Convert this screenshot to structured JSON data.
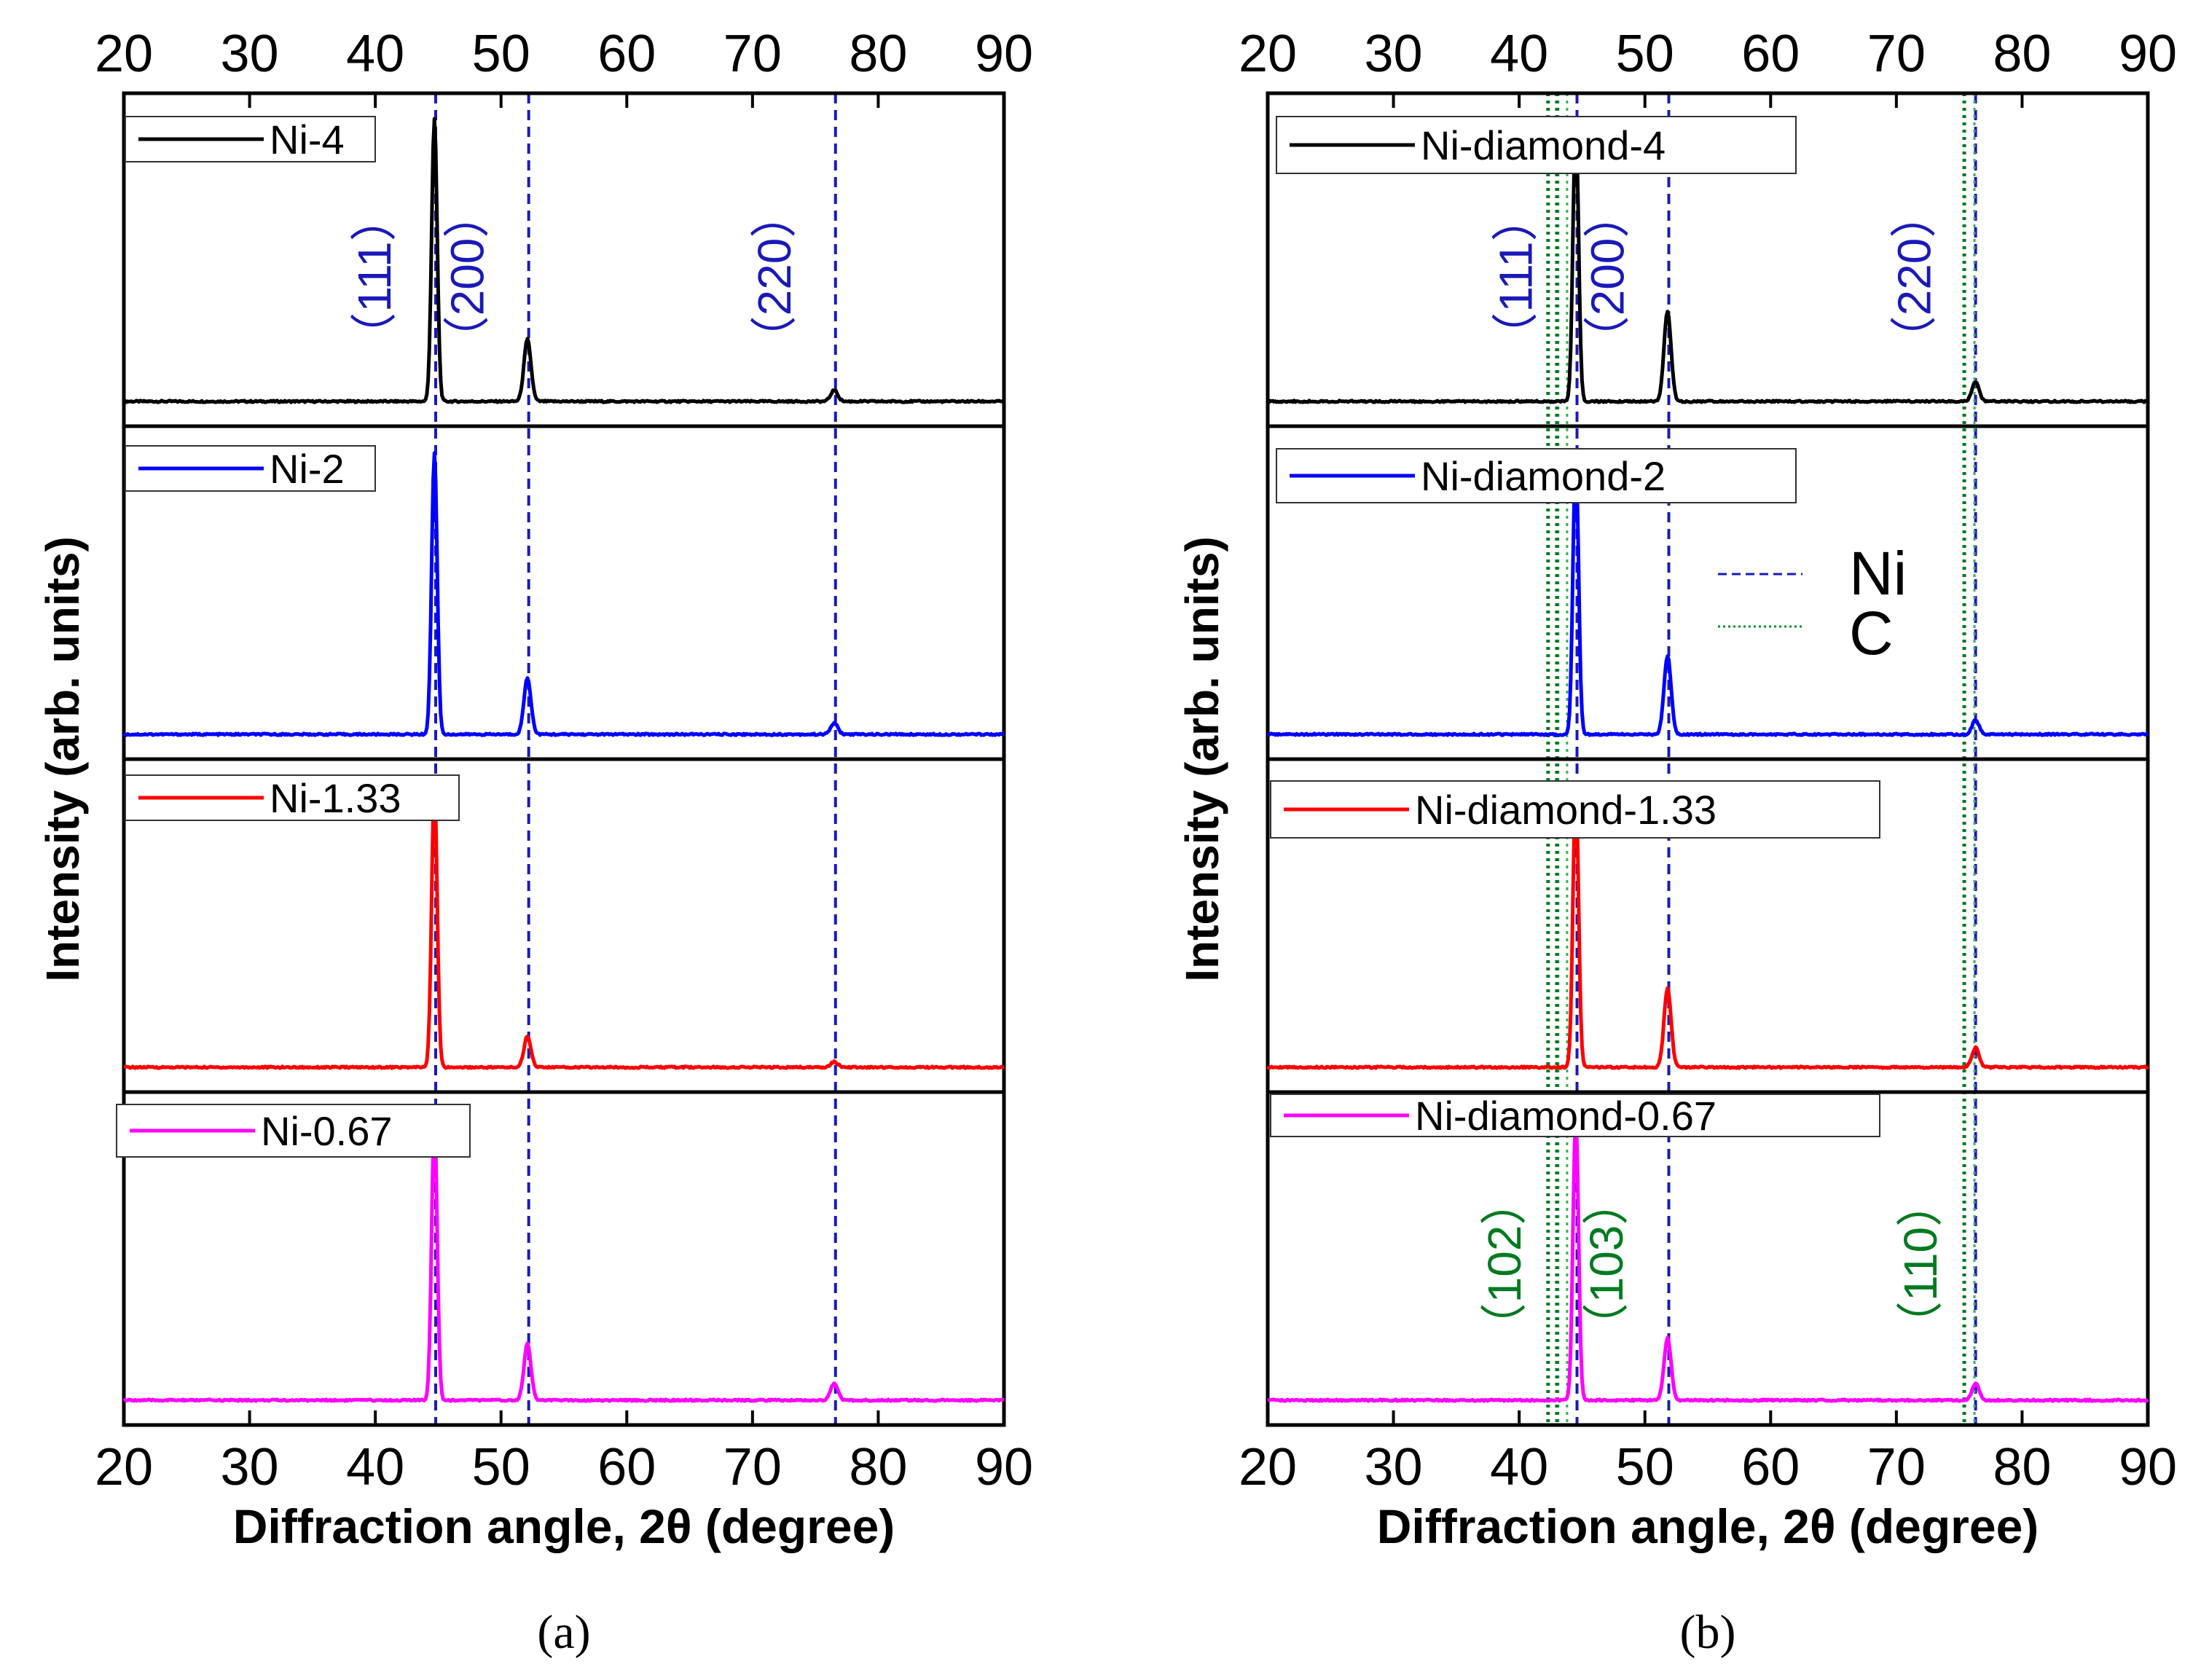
{
  "chart_data": [
    {
      "id": "a",
      "type": "line",
      "caption": "(a)",
      "xlabel": "Diffraction angle, 2θ (degree)",
      "ylabel": "Intensity (arb. units)",
      "xlim": [
        20,
        90
      ],
      "xticks": [
        "20",
        "30",
        "40",
        "50",
        "60",
        "70",
        "80",
        "90"
      ],
      "reference_lines": [
        {
          "phase": "Ni",
          "x": 44.8,
          "label": "（111）",
          "color": "#1a1ab8"
        },
        {
          "phase": "Ni",
          "x": 52.2,
          "label": "（200）",
          "color": "#1a1ab8"
        },
        {
          "phase": "Ni",
          "x": 76.6,
          "label": "（220）",
          "color": "#1a1ab8"
        }
      ],
      "series": [
        {
          "name": "Ni-4",
          "color": "#000000",
          "peaks": [
            {
              "x": 44.7,
              "height": 1.0
            },
            {
              "x": 52.1,
              "height": 0.22
            },
            {
              "x": 76.5,
              "height": 0.04
            }
          ]
        },
        {
          "name": "Ni-2",
          "color": "#0000ff",
          "peaks": [
            {
              "x": 44.7,
              "height": 1.0
            },
            {
              "x": 52.1,
              "height": 0.2
            },
            {
              "x": 76.5,
              "height": 0.04
            }
          ]
        },
        {
          "name": "Ni-1.33",
          "color": "#ff0000",
          "peaks": [
            {
              "x": 44.7,
              "height": 1.0
            },
            {
              "x": 52.1,
              "height": 0.11
            },
            {
              "x": 76.5,
              "height": 0.02
            }
          ]
        },
        {
          "name": "Ni-0.67",
          "color": "#ff00ff",
          "peaks": [
            {
              "x": 44.7,
              "height": 1.0
            },
            {
              "x": 52.1,
              "height": 0.2
            },
            {
              "x": 76.5,
              "height": 0.06
            }
          ]
        }
      ]
    },
    {
      "id": "b",
      "type": "line",
      "caption": "(b)",
      "xlabel": "Diffraction angle, 2θ (degree)",
      "ylabel": "Intensity (arb. units)",
      "xlim": [
        20,
        90
      ],
      "xticks": [
        "20",
        "30",
        "40",
        "50",
        "60",
        "70",
        "80",
        "90"
      ],
      "reference_lines": [
        {
          "phase": "Ni",
          "x": 44.6,
          "label": "（111）",
          "color": "#1a1ab8"
        },
        {
          "phase": "Ni",
          "x": 51.9,
          "label": "（200）",
          "color": "#1a1ab8"
        },
        {
          "phase": "Ni",
          "x": 76.3,
          "label": "（220）",
          "color": "#1a1ab8"
        },
        {
          "phase": "C",
          "x": 42.3,
          "label": "（102）",
          "color": "#007a20"
        },
        {
          "phase": "C",
          "x": 43.0,
          "label": "（103）",
          "color": "#007a20"
        },
        {
          "phase": "C",
          "x": 75.4,
          "label": "（110）",
          "color": "#007a20"
        }
      ],
      "phase_legend": [
        {
          "label": "Ni",
          "color": "#1a1ab8",
          "style": "dashed"
        },
        {
          "label": "C",
          "color": "#009030",
          "style": "dotted"
        }
      ],
      "series": [
        {
          "name": "Ni-diamond-4",
          "color": "#000000",
          "peaks": [
            {
              "x": 44.5,
              "height": 1.0
            },
            {
              "x": 51.8,
              "height": 0.32
            },
            {
              "x": 76.3,
              "height": 0.07
            }
          ]
        },
        {
          "name": "Ni-diamond-2",
          "color": "#0000ff",
          "peaks": [
            {
              "x": 44.5,
              "height": 1.0
            },
            {
              "x": 51.8,
              "height": 0.28
            },
            {
              "x": 76.3,
              "height": 0.05
            }
          ]
        },
        {
          "name": "Ni-diamond-1.33",
          "color": "#ff0000",
          "peaks": [
            {
              "x": 44.5,
              "height": 1.0
            },
            {
              "x": 51.8,
              "height": 0.28
            },
            {
              "x": 76.3,
              "height": 0.07
            }
          ]
        },
        {
          "name": "Ni-diamond-0.67",
          "color": "#ff00ff",
          "peaks": [
            {
              "x": 44.5,
              "height": 1.0
            },
            {
              "x": 51.8,
              "height": 0.22
            },
            {
              "x": 76.3,
              "height": 0.06
            }
          ]
        }
      ]
    }
  ]
}
